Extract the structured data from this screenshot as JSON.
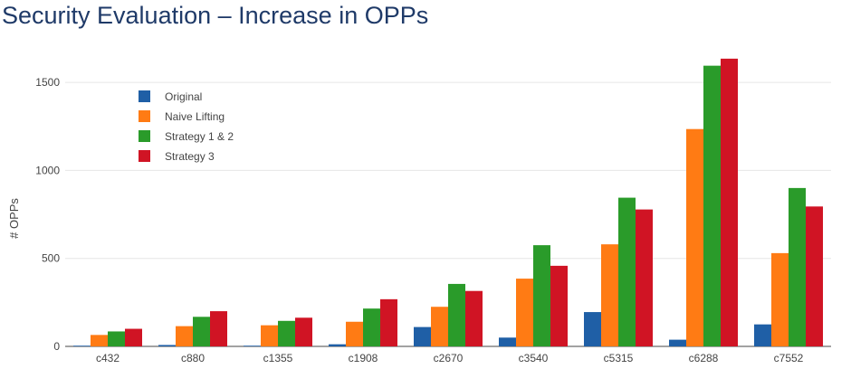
{
  "slide": {
    "title": "Security Evaluation – Increase in OPPs"
  },
  "chart_data": {
    "type": "bar",
    "title": "",
    "xlabel": "",
    "ylabel": "# OPPs",
    "ylim": [
      0,
      1660
    ],
    "yticks": [
      0,
      500,
      1000,
      1500
    ],
    "grid": true,
    "legend_position": "top-left",
    "categories": [
      "c432",
      "c880",
      "c1355",
      "c1908",
      "c2670",
      "c3540",
      "c5315",
      "c6288",
      "c7552"
    ],
    "series": [
      {
        "name": "Original",
        "color": "#1f5fa6",
        "values": [
          4,
          8,
          4,
          12,
          110,
          50,
          195,
          38,
          125
        ]
      },
      {
        "name": "Naive Lifting",
        "color": "#ff7b14",
        "values": [
          65,
          115,
          120,
          140,
          225,
          385,
          580,
          1235,
          530
        ]
      },
      {
        "name": "Strategy 1 & 2",
        "color": "#2a9b2a",
        "values": [
          85,
          168,
          145,
          215,
          355,
          575,
          845,
          1595,
          900
        ]
      },
      {
        "name": "Strategy 3",
        "color": "#d01424",
        "values": [
          100,
          200,
          163,
          268,
          315,
          458,
          778,
          1635,
          795
        ]
      }
    ]
  }
}
